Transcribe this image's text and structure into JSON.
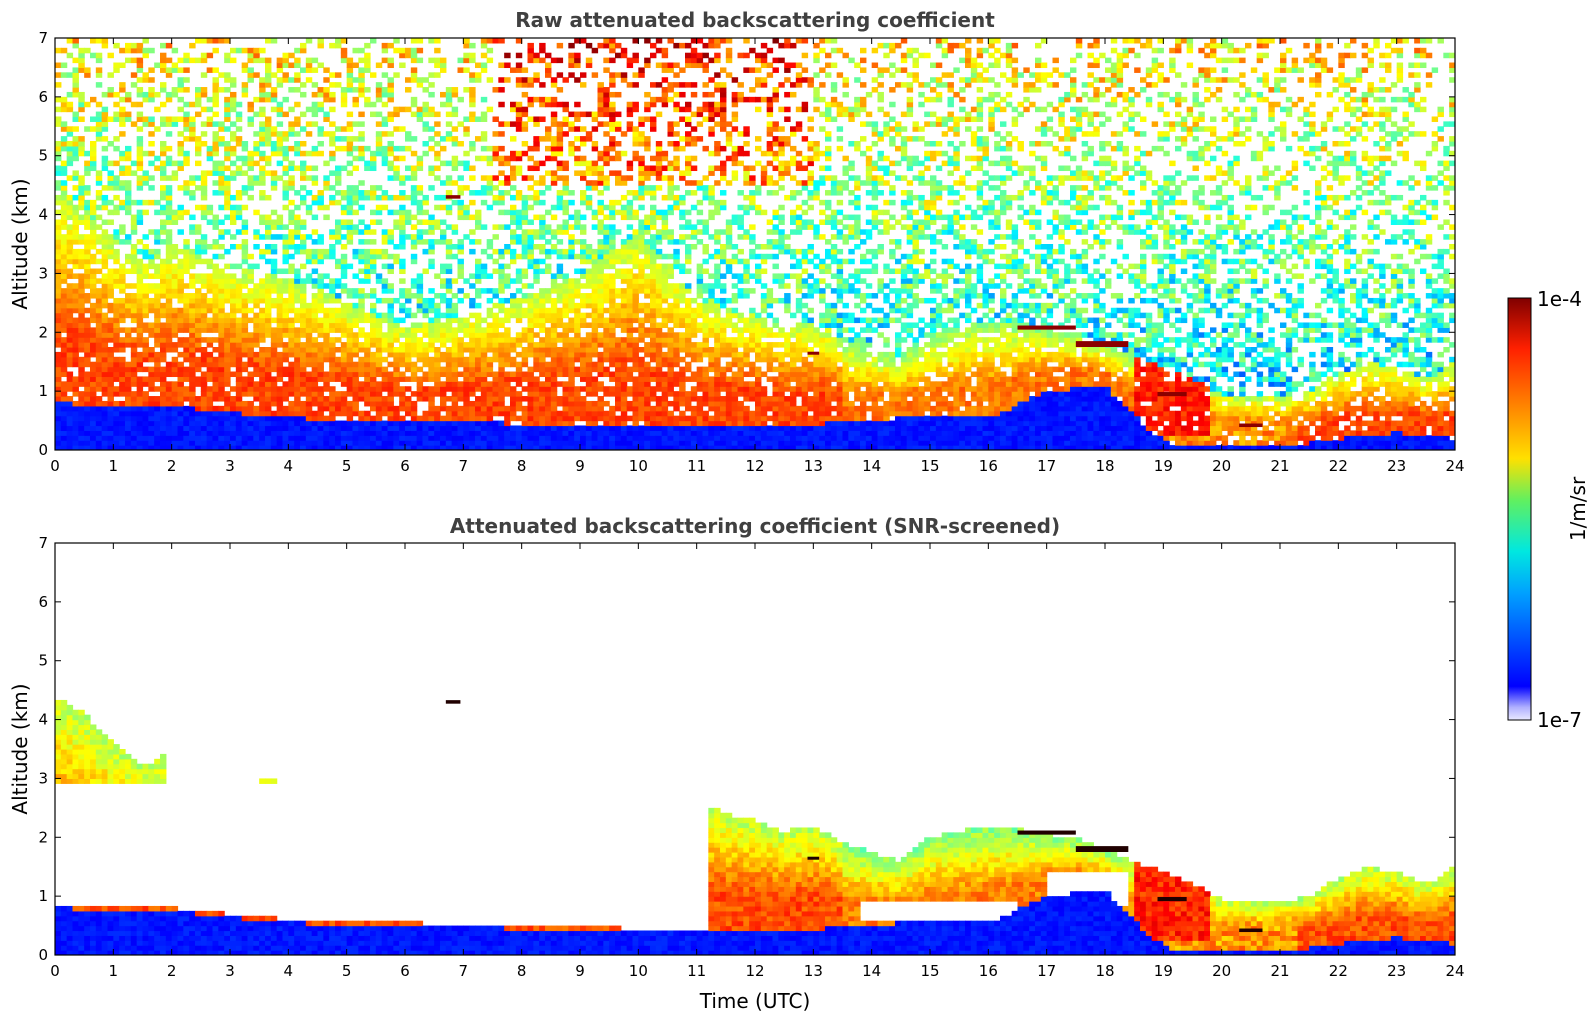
{
  "chart_data": [
    {
      "type": "heatmap",
      "title": "Raw attenuated backscattering coefficient",
      "xlabel": "",
      "ylabel": "Altitude (km)",
      "xlim": [
        0,
        24
      ],
      "ylim": [
        0,
        7
      ],
      "x_ticks": [
        "0",
        "1",
        "2",
        "3",
        "4",
        "5",
        "6",
        "7",
        "8",
        "9",
        "10",
        "11",
        "12",
        "13",
        "14",
        "15",
        "16",
        "17",
        "18",
        "19",
        "20",
        "21",
        "22",
        "23",
        "24"
      ],
      "y_ticks": [
        "0",
        "1",
        "2",
        "3",
        "4",
        "5",
        "6",
        "7"
      ],
      "screened": false,
      "boundary_layer_top_km": {
        "x": [
          0,
          2,
          4,
          6,
          8,
          10,
          12,
          13,
          14,
          14.5,
          15,
          16,
          17,
          18,
          18.8,
          19.3,
          20,
          21,
          22,
          23,
          24
        ],
        "y": [
          0.8,
          0.75,
          0.55,
          0.5,
          0.45,
          0.4,
          0.4,
          0.45,
          0.5,
          0.55,
          0.55,
          0.55,
          1.0,
          1.1,
          0.3,
          0.05,
          0.1,
          0.05,
          0.2,
          0.3,
          0.2
        ]
      },
      "aerosol_layer_top_km": {
        "x": [
          0,
          0.5,
          1,
          1.5,
          2,
          3,
          3.8,
          5,
          6,
          7,
          8,
          9,
          10,
          11,
          11.5,
          12,
          12.5,
          13,
          13.5,
          14,
          14.5,
          15,
          15.5,
          16,
          16.5,
          17,
          17.5,
          18,
          18.5,
          19,
          19.5,
          20,
          20.5,
          21,
          21.5,
          22,
          22.5,
          23,
          23.5,
          24
        ],
        "y": [
          4.4,
          4.1,
          3.6,
          3.2,
          3.5,
          3.1,
          3.0,
          2.5,
          2.1,
          2.3,
          2.6,
          3.0,
          3.7,
          2.6,
          2.4,
          2.3,
          2.1,
          2.2,
          1.9,
          1.75,
          1.6,
          2.0,
          2.1,
          2.2,
          2.15,
          2.05,
          2.0,
          1.8,
          1.6,
          1.4,
          1.2,
          0.95,
          0.9,
          0.9,
          1.0,
          1.3,
          1.5,
          1.4,
          1.2,
          1.5
        ]
      },
      "cloud_layers": [
        {
          "x0": 6.7,
          "x1": 6.95,
          "y": 4.3,
          "thickness_km": 0.06
        },
        {
          "x0": 16.5,
          "x1": 17.5,
          "y": 2.08,
          "thickness_km": 0.07
        },
        {
          "x0": 17.5,
          "x1": 18.4,
          "y": 1.8,
          "thickness_km": 0.1
        },
        {
          "x0": 18.9,
          "x1": 19.4,
          "y": 0.95,
          "thickness_km": 0.07
        },
        {
          "x0": 20.3,
          "x1": 20.7,
          "y": 0.42,
          "thickness_km": 0.06
        },
        {
          "x0": 12.9,
          "x1": 13.1,
          "y": 1.65,
          "thickness_km": 0.04
        }
      ]
    },
    {
      "type": "heatmap",
      "title": "Attenuated backscattering coefficient (SNR-screened)",
      "xlabel": "Time (UTC)",
      "ylabel": "Altitude (km)",
      "xlim": [
        0,
        24
      ],
      "ylim": [
        0,
        7
      ],
      "x_ticks": [
        "0",
        "1",
        "2",
        "3",
        "4",
        "5",
        "6",
        "7",
        "8",
        "9",
        "10",
        "11",
        "12",
        "13",
        "14",
        "15",
        "16",
        "17",
        "18",
        "19",
        "20",
        "21",
        "22",
        "23",
        "24"
      ],
      "y_ticks": [
        "0",
        "1",
        "2",
        "3",
        "4",
        "5",
        "6",
        "7"
      ],
      "screened": true,
      "colorbar": {
        "label": "1/m/sr",
        "min_label": "1e-7",
        "max_label": "1e-4",
        "scale": "log",
        "range": [
          1e-07,
          0.0001
        ]
      }
    }
  ]
}
